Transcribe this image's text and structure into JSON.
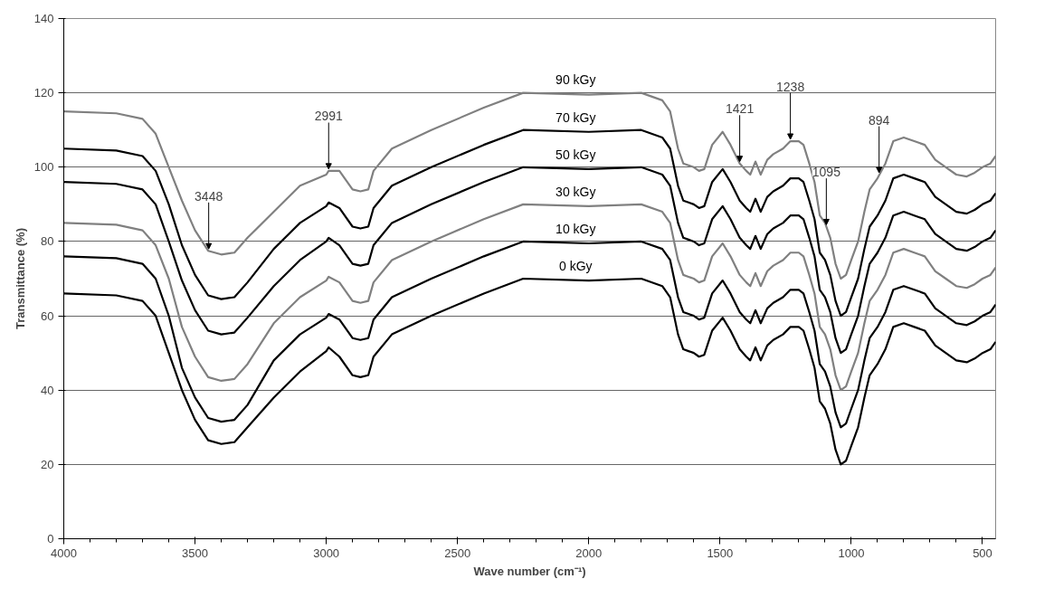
{
  "chart_data": {
    "type": "line",
    "xlabel": "Wave number (cm⁻¹)",
    "ylabel": "Transmittance (%)",
    "x": [
      4000,
      3800,
      3700,
      3650,
      3600,
      3550,
      3500,
      3450,
      3400,
      3350,
      3300,
      3200,
      3100,
      3000,
      2991,
      2950,
      2900,
      2870,
      2840,
      2820,
      2750,
      2600,
      2400,
      2250,
      2000,
      1800,
      1720,
      1690,
      1660,
      1640,
      1620,
      1600,
      1580,
      1560,
      1530,
      1490,
      1460,
      1425,
      1400,
      1385,
      1365,
      1345,
      1320,
      1297,
      1260,
      1232,
      1200,
      1182,
      1160,
      1140,
      1120,
      1100,
      1080,
      1060,
      1040,
      1020,
      1000,
      974,
      950,
      930,
      900,
      870,
      840,
      800,
      760,
      720,
      680,
      640,
      600,
      560,
      530,
      500,
      470,
      450
    ],
    "series": [
      {
        "name": "0 kGy",
        "color": "#000000",
        "values": [
          66,
          65.5,
          64,
          60,
          50,
          40,
          32,
          26.5,
          25.5,
          26,
          30,
          38,
          45,
          50.5,
          51.5,
          49,
          44,
          43.5,
          44,
          49,
          55,
          60,
          66,
          70,
          69.5,
          70,
          68,
          65,
          55,
          51,
          50.5,
          50,
          49,
          49.5,
          56,
          59.5,
          56,
          51,
          49,
          48,
          51.5,
          48,
          52,
          53.5,
          55,
          57,
          57,
          56,
          51,
          46,
          37,
          35,
          31,
          24,
          20,
          21,
          25,
          30,
          38,
          44,
          47,
          51,
          57,
          58,
          57,
          56,
          52,
          50,
          48,
          47.5,
          48.5,
          50,
          51,
          53
        ]
      },
      {
        "name": "10 kGy",
        "color": "#000000",
        "values": [
          76,
          75.5,
          74,
          70,
          60,
          46,
          38,
          32.5,
          31.5,
          32,
          36,
          48,
          55,
          59.5,
          60.5,
          59,
          54,
          53.5,
          54,
          59,
          65,
          70,
          76,
          80,
          79.5,
          80,
          78,
          75,
          65,
          61,
          60.5,
          60,
          59,
          59.5,
          66,
          69.5,
          66,
          61,
          59,
          58,
          61.5,
          58,
          62,
          63.5,
          65,
          67,
          67,
          66,
          61,
          56,
          47,
          45,
          41,
          34,
          30,
          31,
          35,
          40,
          48,
          54,
          57,
          61,
          67,
          68,
          67,
          66,
          62,
          60,
          58,
          57.5,
          58.5,
          60,
          61,
          63
        ]
      },
      {
        "name": "30 kGy",
        "color": "#808080",
        "values": [
          85,
          84.5,
          83,
          79,
          70,
          57,
          49,
          43.5,
          42.5,
          43,
          47,
          58,
          65,
          69.5,
          70.5,
          69,
          64,
          63.5,
          64,
          69,
          75,
          80,
          86,
          90,
          89.5,
          90,
          88,
          85,
          75,
          71,
          70.5,
          70,
          69,
          69.5,
          76,
          79.5,
          76,
          71,
          69,
          68,
          71.5,
          68,
          72,
          73.5,
          75,
          77,
          77,
          76,
          71,
          66,
          57,
          55,
          51,
          44,
          40,
          41,
          45,
          50,
          58,
          64,
          67,
          71,
          77,
          78,
          77,
          76,
          72,
          70,
          68,
          67.5,
          68.5,
          70,
          71,
          73
        ]
      },
      {
        "name": "50 kGy",
        "color": "#000000",
        "values": [
          96,
          95.5,
          94,
          90,
          80,
          69.5,
          61.5,
          56,
          55,
          55.5,
          59.5,
          68,
          75,
          80,
          81,
          79,
          74,
          73.5,
          74,
          79,
          85,
          90,
          96,
          100,
          99.5,
          100,
          98,
          95,
          85,
          81,
          80.5,
          80,
          79,
          79.5,
          86,
          89.5,
          86,
          81,
          79,
          78,
          81.5,
          78,
          82,
          83.5,
          85,
          87,
          87,
          86,
          81,
          76,
          67,
          65,
          61,
          54,
          50,
          51,
          55,
          60,
          68,
          74,
          77,
          81,
          87,
          88,
          87,
          86,
          82,
          80,
          78,
          77.5,
          78.5,
          80,
          81,
          83
        ]
      },
      {
        "name": "70 kGy",
        "color": "#000000",
        "values": [
          105,
          104.5,
          103,
          99,
          90,
          79,
          71,
          65.5,
          64.5,
          65,
          69,
          78,
          85,
          89.5,
          90.5,
          89,
          84,
          83.5,
          84,
          89,
          95,
          100,
          106,
          110,
          109.5,
          110,
          108,
          105,
          95,
          91,
          90.5,
          90,
          89,
          89.5,
          96,
          99.5,
          96,
          91,
          89,
          88,
          91.5,
          88,
          92,
          93.5,
          95,
          97,
          97,
          96,
          91,
          86,
          77,
          75,
          71,
          64,
          60,
          61,
          65,
          70,
          78,
          84,
          87,
          91,
          97,
          98,
          97,
          96,
          92,
          90,
          88,
          87.5,
          88.5,
          90,
          91,
          93
        ]
      },
      {
        "name": "90 kGy",
        "color": "#808080",
        "values": [
          115,
          114.5,
          113,
          109,
          100,
          91,
          83,
          77.5,
          76.5,
          77,
          81,
          88,
          95,
          98,
          99,
          99,
          94,
          93.5,
          94,
          99,
          105,
          110,
          116,
          120,
          119.5,
          120,
          118,
          115,
          105,
          101,
          100.5,
          100,
          99,
          99.5,
          106,
          109.5,
          106,
          101,
          99,
          98,
          101.5,
          98,
          102,
          103.5,
          105,
          107,
          107,
          106,
          101,
          96,
          87,
          85,
          81,
          74,
          70,
          71,
          75,
          80,
          88,
          94,
          97,
          101,
          107,
          108,
          107,
          106,
          102,
          100,
          98,
          97.5,
          98.5,
          100,
          101,
          103
        ]
      }
    ],
    "annotations": [
      {
        "text": "3448",
        "x": 3448,
        "y": 77.5
      },
      {
        "text": "2991",
        "x": 2991,
        "y": 99
      },
      {
        "text": "1421",
        "x": 1425,
        "y": 101
      },
      {
        "text": "1238",
        "x": 1232,
        "y": 107
      },
      {
        "text": "1095",
        "x": 1095,
        "y": 84
      },
      {
        "text": "894",
        "x": 894,
        "y": 98
      }
    ],
    "xlim": [
      4000,
      450
    ],
    "xticks": [
      4000,
      3500,
      3000,
      2500,
      2000,
      1500,
      1000,
      500
    ],
    "ylim": [
      0,
      140
    ],
    "yticks": [
      0,
      20,
      40,
      60,
      80,
      100,
      120,
      140
    ],
    "grid": "y",
    "marker": "none",
    "line_style": "solid"
  }
}
